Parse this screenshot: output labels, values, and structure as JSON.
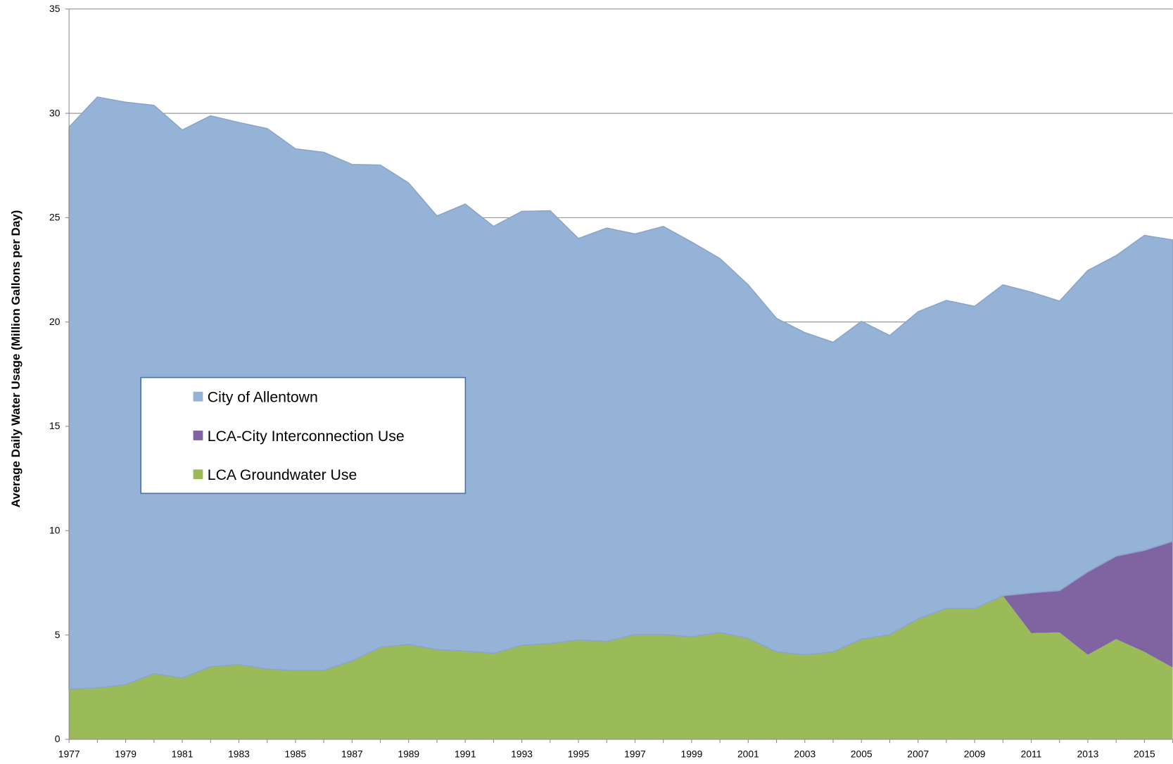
{
  "chart_data": {
    "type": "stacked_area",
    "y_label": "Average Daily Water Usage (Million Gallons per Day)",
    "categories": [
      "1977",
      null,
      "1979",
      null,
      "1981",
      null,
      "1983",
      null,
      "1985",
      null,
      "1987",
      null,
      "1989",
      null,
      "1991",
      null,
      "1993",
      null,
      "1995",
      null,
      "1997",
      null,
      "1999",
      null,
      "2001",
      null,
      "2003",
      null,
      "2005",
      null,
      "2007",
      null,
      "2009",
      null,
      "2011",
      null,
      "2013",
      null,
      "2015",
      null
    ],
    "series": [
      {
        "name": "City of Allentown",
        "color": "#95b3d7",
        "values": [
          26.94,
          28.31,
          27.91,
          27.23,
          26.26,
          26.4,
          25.98,
          25.9,
          25.0,
          24.83,
          23.79,
          23.11,
          22.11,
          20.78,
          21.42,
          20.46,
          20.79,
          20.74,
          19.23,
          19.81,
          19.2,
          19.56,
          18.92,
          17.92,
          16.94,
          15.98,
          15.44,
          14.84,
          15.23,
          14.33,
          14.72,
          14.76,
          14.48,
          14.9,
          14.41,
          13.87,
          14.44,
          14.4,
          15.09,
          14.44
        ]
      },
      {
        "name": "LCA-City Interconnection Use",
        "color": "#8064a2",
        "values": [
          0,
          0,
          0,
          0,
          0,
          0,
          0,
          0,
          0,
          0,
          0,
          0,
          0,
          0,
          0,
          0,
          0,
          0,
          0,
          0,
          0,
          0,
          0,
          0,
          0,
          0,
          0,
          0,
          0,
          0,
          0,
          0,
          0,
          0,
          1.93,
          2.01,
          3.98,
          3.98,
          4.87,
          6.05
        ]
      },
      {
        "name": "LCA Groundwater Use",
        "color": "#9bbb59",
        "values": [
          2.4,
          2.47,
          2.62,
          3.15,
          2.94,
          3.48,
          3.58,
          3.37,
          3.3,
          3.3,
          3.76,
          4.41,
          4.55,
          4.3,
          4.23,
          4.12,
          4.51,
          4.59,
          4.77,
          4.69,
          5.02,
          5.02,
          4.91,
          5.12,
          4.84,
          4.19,
          4.05,
          4.19,
          4.8,
          5.02,
          5.77,
          6.27,
          6.27,
          6.88,
          5.09,
          5.12,
          4.05,
          4.8,
          4.19,
          3.44
        ]
      }
    ],
    "ylim": [
      0,
      35
    ],
    "yticks": [
      0,
      5,
      10,
      15,
      20,
      25,
      30,
      35
    ],
    "grid": true,
    "legend": "left"
  }
}
